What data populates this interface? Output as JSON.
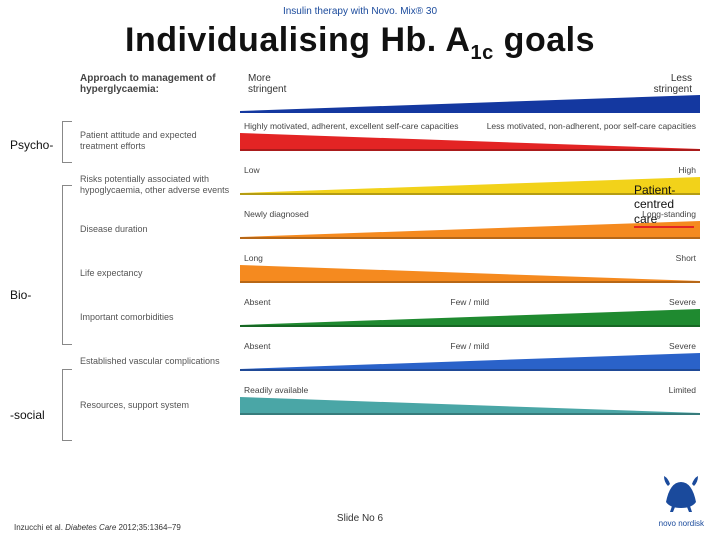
{
  "header": "Insulin therapy with Novo. Mix® 30",
  "title_html": "Individualising Hb. A<sub>1c</sub> goals",
  "approach_label": "Approach to management of hyperglycaemia:",
  "stringency": {
    "left": "More\nstringent",
    "right": "Less\nstringent"
  },
  "side_labels": {
    "psycho": "Psycho-",
    "bio": "Bio-",
    "social": "-social"
  },
  "patient_centred": "Patient-centred care",
  "factors": [
    {
      "label": "Patient attitude and expected treatment efforts",
      "left": "Highly motivated, adherent, excellent self-care capacities",
      "right": "Less motivated, non-adherent, poor self-care capacities",
      "color": "#e32424",
      "dir": "rl"
    },
    {
      "label": "Risks potentially associated with hypoglycaemia, other adverse events",
      "left": "Low",
      "right": "High",
      "color": "#f2d21a",
      "dir": "lr"
    },
    {
      "label": "Disease duration",
      "left": "Newly diagnosed",
      "right": "Long-standing",
      "color": "#f58a1f",
      "dir": "lr"
    },
    {
      "label": "Life expectancy",
      "left": "Long",
      "right": "Short",
      "color": "#f58a1f",
      "dir": "rl"
    },
    {
      "label": "Important comorbidities",
      "left": "Absent",
      "mid": "Few / mild",
      "right": "Severe",
      "color": "#1f8a30",
      "dir": "lr"
    },
    {
      "label": "Established vascular complications",
      "left": "Absent",
      "mid": "Few / mild",
      "right": "Severe",
      "color": "#2a62c9",
      "dir": "lr"
    },
    {
      "label": "Resources, support system",
      "left": "Readily available",
      "right": "Limited",
      "color": "#4aa6a6",
      "dir": "rl"
    }
  ],
  "citation_prefix": "Inzucchi et al. ",
  "citation_ital": "Diabetes Care",
  "citation_suffix": " 2012;35:1364–79",
  "slide_no": "Slide No 6",
  "logo_text": "novo nordisk",
  "colors": {
    "logo_blue": "#1a4a9c",
    "header_wedge": "#1438a0"
  }
}
